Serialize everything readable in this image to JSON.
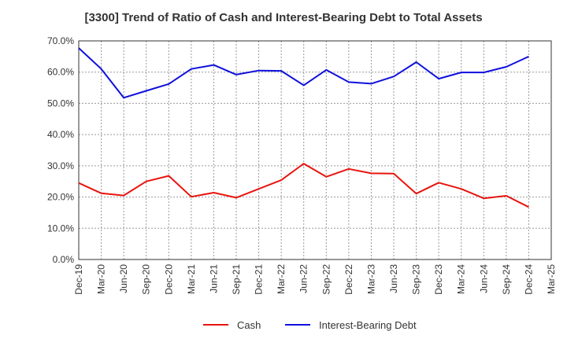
{
  "chart_data": {
    "type": "line",
    "title": "[3300]  Trend of Ratio of Cash and Interest-Bearing Debt to Total Assets",
    "xlabel": "",
    "ylabel": "",
    "ylim": [
      0,
      70
    ],
    "yticks": [
      "0.0%",
      "10.0%",
      "20.0%",
      "30.0%",
      "40.0%",
      "50.0%",
      "60.0%",
      "70.0%"
    ],
    "categories": [
      "Dec-19",
      "Mar-20",
      "Jun-20",
      "Sep-20",
      "Dec-20",
      "Mar-21",
      "Jun-21",
      "Sep-21",
      "Dec-21",
      "Mar-22",
      "Jun-22",
      "Sep-22",
      "Dec-22",
      "Mar-23",
      "Jun-23",
      "Sep-23",
      "Dec-23",
      "Mar-24",
      "Jun-24",
      "Sep-24",
      "Dec-24",
      "Mar-25"
    ],
    "grid": true,
    "legend_position": "bottom",
    "series": [
      {
        "name": "Cash",
        "color": "#e8140f",
        "values": [
          24.5,
          21.2,
          20.5,
          25.0,
          26.8,
          20.1,
          21.4,
          19.8,
          22.6,
          25.4,
          30.7,
          26.5,
          29.0,
          27.6,
          27.5,
          21.1,
          24.6,
          22.6,
          19.6,
          20.4,
          16.8,
          null
        ]
      },
      {
        "name": "Interest-Bearing Debt",
        "color": "#1010dd",
        "values": [
          67.7,
          61.0,
          51.8,
          54.0,
          56.2,
          61.0,
          62.3,
          59.2,
          60.5,
          60.4,
          55.8,
          60.7,
          56.8,
          56.3,
          58.6,
          63.2,
          57.9,
          59.9,
          59.9,
          61.7,
          65.0,
          null
        ]
      }
    ]
  }
}
